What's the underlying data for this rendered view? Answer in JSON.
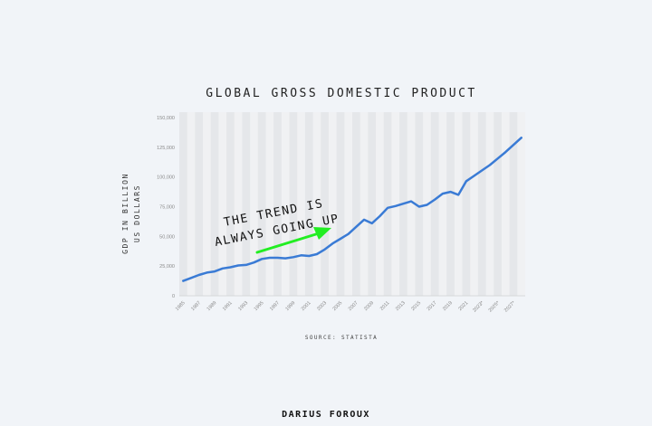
{
  "chart_data": {
    "type": "line",
    "title": "GLOBAL GROSS DOMESTIC PRODUCT",
    "ylabel_line1": "GDP IN BILLION",
    "ylabel_line2": "US DOLLARS",
    "source": "SOURCE: STATISTA",
    "annotation_line1": "THE TREND IS",
    "annotation_line2": "ALWAYS GOING UP",
    "ylim": [
      0,
      150000
    ],
    "y_ticks": [
      "0",
      "25,000",
      "50,000",
      "75,000",
      "100,000",
      "125,000",
      "150,000"
    ],
    "x_ticks": [
      "1985",
      "1987",
      "1989",
      "1991",
      "1993",
      "1995",
      "1997",
      "1999",
      "2001",
      "2003",
      "2005",
      "2007",
      "2009",
      "2011",
      "2013",
      "2015",
      "2017",
      "2019",
      "2021",
      "2023*",
      "2025*",
      "2027*"
    ],
    "series": [
      {
        "x": [
          "1985",
          "1986",
          "1987",
          "1988",
          "1989",
          "1990",
          "1991",
          "1992",
          "1993",
          "1994",
          "1995",
          "1996",
          "1997",
          "1998",
          "1999",
          "2000",
          "2001",
          "2002",
          "2003",
          "2004",
          "2005",
          "2006",
          "2007",
          "2008",
          "2009",
          "2010",
          "2011",
          "2012",
          "2013",
          "2014",
          "2015",
          "2016",
          "2017",
          "2018",
          "2019",
          "2020",
          "2021",
          "2022",
          "2023*",
          "2024*",
          "2025*",
          "2026*",
          "2027*",
          "2028*"
        ],
        "values": [
          12500,
          15000,
          17500,
          19500,
          20500,
          23000,
          24000,
          25500,
          26000,
          28000,
          31000,
          32000,
          32000,
          31500,
          32500,
          34000,
          33500,
          35000,
          39000,
          44000,
          48000,
          52000,
          58000,
          64000,
          61000,
          67000,
          74000,
          75500,
          77500,
          79500,
          75000,
          76500,
          81000,
          86000,
          87500,
          85000,
          96500,
          101000,
          105500,
          110000,
          115500,
          121000,
          127000,
          133000
        ]
      }
    ],
    "grid": "vertical alternating bands",
    "colors": {
      "line": "#3a7bd5",
      "arrow": "#22ee22",
      "plot_band_dark": "#e5e7ea",
      "plot_band_light": "#f0f1f3"
    }
  },
  "author": "DARIUS FOROUX"
}
